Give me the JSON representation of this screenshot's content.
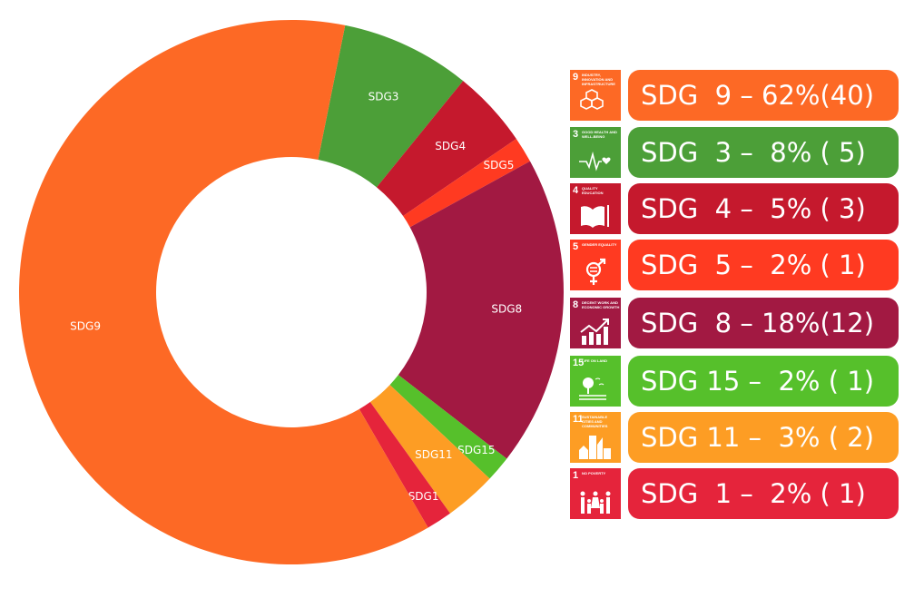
{
  "chart_data": {
    "type": "pie",
    "variant": "donut",
    "start_angle_deg": 11.4,
    "direction": "clockwise",
    "slices": [
      {
        "label": "SDG3",
        "value": 5,
        "color": "#4C9F38"
      },
      {
        "label": "SDG4",
        "value": 3,
        "color": "#C5192D"
      },
      {
        "label": "SDG5",
        "value": 1,
        "color": "#FF3A21"
      },
      {
        "label": "SDG8",
        "value": 12,
        "color": "#A21942"
      },
      {
        "label": "SDG15",
        "value": 1,
        "color": "#56C02B"
      },
      {
        "label": "SDG11",
        "value": 2,
        "color": "#FD9D24"
      },
      {
        "label": "SDG1",
        "value": 1,
        "color": "#E5243B"
      },
      {
        "label": "SDG9",
        "value": 40,
        "color": "#FD6925"
      }
    ]
  },
  "legend": [
    {
      "num": "9",
      "tile_text": "Industry, innovation and infrastructure",
      "icon": "cubes-icon",
      "text": "SDG  9 – 62%(40)",
      "color": "#FD6925"
    },
    {
      "num": "3",
      "tile_text": "Good health and well-being",
      "icon": "heartbeat-icon",
      "text": "SDG  3 –  8% ( 5)",
      "color": "#4C9F38"
    },
    {
      "num": "4",
      "tile_text": "Quality education",
      "icon": "book-icon",
      "text": "SDG  4 –  5% ( 3)",
      "color": "#C5192D"
    },
    {
      "num": "5",
      "tile_text": "Gender equality",
      "icon": "gender-icon",
      "text": "SDG  5 –  2% ( 1)",
      "color": "#FF3A21"
    },
    {
      "num": "8",
      "tile_text": "Decent work and economic growth",
      "icon": "growth-chart-icon",
      "text": "SDG  8 – 18%(12)",
      "color": "#A21942"
    },
    {
      "num": "15",
      "tile_text": "Life on land",
      "icon": "tree-icon",
      "text": "SDG 15 –  2% ( 1)",
      "color": "#56C02B"
    },
    {
      "num": "11",
      "tile_text": "Sustainable cities and communities",
      "icon": "city-icon",
      "text": "SDG 11 –  3% ( 2)",
      "color": "#FD9D24"
    },
    {
      "num": "1",
      "tile_text": "No poverty",
      "icon": "family-icon",
      "text": "SDG  1 –  2% ( 1)",
      "color": "#E5243B"
    }
  ]
}
